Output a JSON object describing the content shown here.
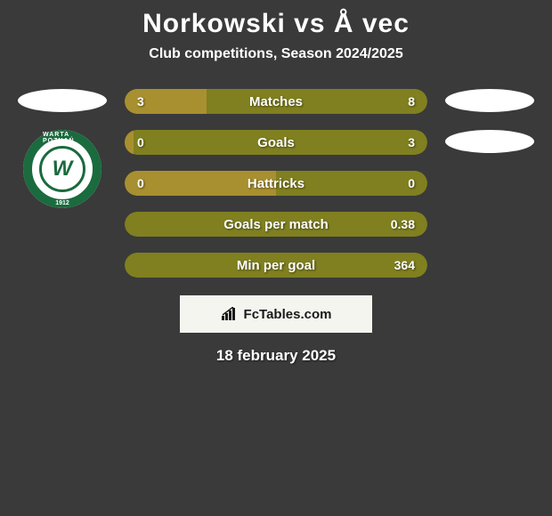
{
  "header": {
    "title": "Norkowski vs Å vec",
    "subtitle": "Club competitions, Season 2024/2025"
  },
  "club_logo": {
    "top_text": "WARTA POZNAŃ",
    "year": "1912",
    "letter": "W",
    "ring_color": "#1a6b3e",
    "inner_bg": "#ffffff"
  },
  "colors": {
    "background": "#3a3a3a",
    "bar_left": "#a89030",
    "bar_right": "#808020",
    "text": "#ffffff",
    "badge_bg": "#f5f5f0"
  },
  "stats": [
    {
      "label": "Matches",
      "left_val": "3",
      "right_val": "8",
      "left_pct": 27,
      "left_color": "#a89030",
      "right_color": "#808020"
    },
    {
      "label": "Goals",
      "left_val": "0",
      "right_val": "3",
      "left_pct": 3,
      "left_color": "#a89030",
      "right_color": "#808020"
    },
    {
      "label": "Hattricks",
      "left_val": "0",
      "right_val": "0",
      "left_pct": 50,
      "left_color": "#a89030",
      "right_color": "#808020"
    },
    {
      "label": "Goals per match",
      "left_val": "",
      "right_val": "0.38",
      "left_pct": 0,
      "left_color": "#a89030",
      "right_color": "#808020"
    },
    {
      "label": "Min per goal",
      "left_val": "",
      "right_val": "364",
      "left_pct": 0,
      "left_color": "#a89030",
      "right_color": "#808020"
    }
  ],
  "footer": {
    "brand": "FcTables.com",
    "date": "18 february 2025"
  }
}
